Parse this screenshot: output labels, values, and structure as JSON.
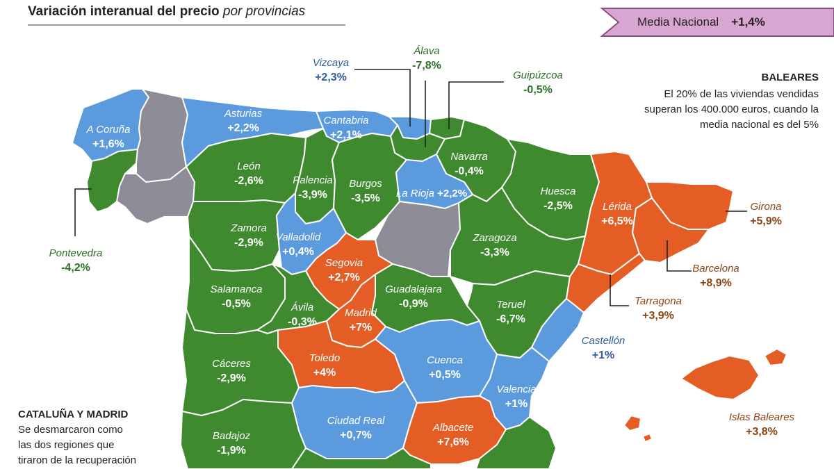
{
  "title": {
    "main": "Variación interanual del precio",
    "sub": "por provincias"
  },
  "media_nacional": {
    "label": "Media Nacional",
    "value": "+1,4%",
    "banner_color": "#d9a6d4",
    "banner_edge": "#8a4b86"
  },
  "colors": {
    "green": "#3f8a2f",
    "blue": "#5b9bdd",
    "orange": "#e45d25",
    "grey": "#8d8c97",
    "border": "#ffffff"
  },
  "provinces": [
    {
      "id": "a-coruna",
      "name": "A Coruña",
      "value": "+1,6%",
      "color": "blue"
    },
    {
      "id": "pontevedra",
      "name": "Pontevedra",
      "value": "-4,2%",
      "color": "green"
    },
    {
      "id": "asturias",
      "name": "Asturias",
      "value": "+2,2%",
      "color": "blue"
    },
    {
      "id": "cantabria",
      "name": "Cantabria",
      "value": "+2,1%",
      "color": "blue"
    },
    {
      "id": "vizcaya",
      "name": "Vizcaya",
      "value": "+2,3%",
      "color": "blue"
    },
    {
      "id": "alava",
      "name": "Álava",
      "value": "-7,8%",
      "color": "green"
    },
    {
      "id": "guipuzcoa",
      "name": "Guipúzcoa",
      "value": "-0,5%",
      "color": "green"
    },
    {
      "id": "navarra",
      "name": "Navarra",
      "value": "-0,4%",
      "color": "green"
    },
    {
      "id": "leon",
      "name": "León",
      "value": "-2,6%",
      "color": "green"
    },
    {
      "id": "palencia",
      "name": "Palencia",
      "value": "-3,9%",
      "color": "green"
    },
    {
      "id": "burgos",
      "name": "Burgos",
      "value": "-3,5%",
      "color": "green"
    },
    {
      "id": "la-rioja",
      "name": "La Rioja",
      "value": "+2,2%",
      "color": "blue"
    },
    {
      "id": "huesca",
      "name": "Huesca",
      "value": "-2,5%",
      "color": "green"
    },
    {
      "id": "lerida",
      "name": "Lérida",
      "value": "+6,5%",
      "color": "orange"
    },
    {
      "id": "girona",
      "name": "Girona",
      "value": "+5,9%",
      "color": "orange"
    },
    {
      "id": "barcelona",
      "name": "Barcelona",
      "value": "+8,9%",
      "color": "orange"
    },
    {
      "id": "tarragona",
      "name": "Tarragona",
      "value": "+3,9%",
      "color": "orange"
    },
    {
      "id": "zamora",
      "name": "Zamora",
      "value": "-2,9%",
      "color": "green"
    },
    {
      "id": "valladolid",
      "name": "Valladolid",
      "value": "+0,4%",
      "color": "blue"
    },
    {
      "id": "zaragoza",
      "name": "Zaragoza",
      "value": "-3,3%",
      "color": "green"
    },
    {
      "id": "segovia",
      "name": "Segovia",
      "value": "+2,7%",
      "color": "orange"
    },
    {
      "id": "salamanca",
      "name": "Salamanca",
      "value": "-0,5%",
      "color": "green"
    },
    {
      "id": "avila",
      "name": "Ávila",
      "value": "-0,3%",
      "color": "green"
    },
    {
      "id": "guadalajara",
      "name": "Guadalajara",
      "value": "-0,9%",
      "color": "green"
    },
    {
      "id": "madrid",
      "name": "Madrid",
      "value": "+7%",
      "color": "orange"
    },
    {
      "id": "teruel",
      "name": "Teruel",
      "value": "-6,7%",
      "color": "green"
    },
    {
      "id": "castellon",
      "name": "Castellón",
      "value": "+1%",
      "color": "blue"
    },
    {
      "id": "caceres",
      "name": "Cáceres",
      "value": "-2,9%",
      "color": "green"
    },
    {
      "id": "toledo",
      "name": "Toledo",
      "value": "+4%",
      "color": "orange"
    },
    {
      "id": "cuenca",
      "name": "Cuenca",
      "value": "+0,5%",
      "color": "blue"
    },
    {
      "id": "valencia",
      "name": "Valencia",
      "value": "+1%",
      "color": "blue"
    },
    {
      "id": "ciudad-real",
      "name": "Ciudad Real",
      "value": "+0,7%",
      "color": "blue"
    },
    {
      "id": "albacete",
      "name": "Albacete",
      "value": "+7,6%",
      "color": "orange"
    },
    {
      "id": "badajoz",
      "name": "Badajoz",
      "value": "-1,9%",
      "color": "green"
    },
    {
      "id": "islas-baleares",
      "name": "Islas Baleares",
      "value": "+3,8%",
      "color": "orange"
    }
  ],
  "unlabeled_regions": [
    {
      "id": "lugo",
      "color": "grey"
    },
    {
      "id": "ourense",
      "color": "grey"
    },
    {
      "id": "soria",
      "color": "grey"
    }
  ],
  "notes": {
    "baleares": {
      "heading": "BALEARES",
      "lines": [
        "El 20% de las viviendas vendidas",
        "superan los 400.000 euros, cuando la",
        "media nacional es del 5%"
      ]
    },
    "cataluna_madrid": {
      "heading": "CATALUÑA Y MADRID",
      "lines": [
        "Se desmarcaron como",
        "las dos regiones que",
        "tiraron de la recuperación"
      ]
    }
  }
}
